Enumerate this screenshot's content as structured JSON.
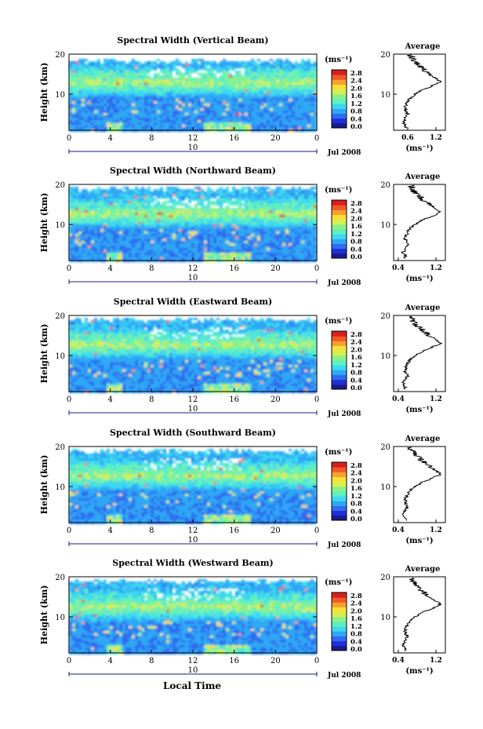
{
  "colorbar": {
    "unit_label": "(ms⁻¹)",
    "ticks": [
      "2.8",
      "2.4",
      "2.0",
      "1.6",
      "1.2",
      "0.8",
      "0.4",
      "0.0"
    ],
    "colors": [
      "#1a1a8c",
      "#1f2fd6",
      "#2f6cf0",
      "#2fa7f5",
      "#3ed8f0",
      "#5ef0c0",
      "#8cf08a",
      "#d4f050",
      "#f8e03a",
      "#f8a030",
      "#f05a28",
      "#d8201e"
    ]
  },
  "shared": {
    "ylabel": "Height (km)",
    "xticks": [
      "0",
      "4",
      "8",
      "12",
      "16",
      "20",
      "0"
    ],
    "date_label": "10",
    "month_label": "Jul 2008",
    "xlabel": "Local Time",
    "avg_title": "Average",
    "avg_xlabel": "(ms⁻¹)",
    "height_ticks": [
      "20",
      "10"
    ]
  },
  "panels": [
    {
      "id": "vertical",
      "title": "Spectral Width (Vertical Beam)",
      "avg_xticks": [
        "0.6",
        "1.2"
      ],
      "peak_height": 13.2
    },
    {
      "id": "northward",
      "title": "Spectral Width (Northward Beam)",
      "avg_xticks": [
        "0.4",
        "1.2"
      ],
      "peak_height": 13.0
    },
    {
      "id": "eastward",
      "title": "Spectral Width (Eastward Beam)",
      "avg_xticks": [
        "0.4",
        "1.2"
      ],
      "peak_height": 13.0
    },
    {
      "id": "southward",
      "title": "Spectral Width (Southward Beam)",
      "avg_xticks": [
        "0.4",
        "1.2"
      ],
      "peak_height": 13.0
    },
    {
      "id": "westward",
      "title": "Spectral Width (Westward Beam)",
      "avg_xticks": [
        "0.4",
        "1.2"
      ],
      "peak_height": 12.8
    }
  ],
  "chart_data": {
    "type": "heatmap",
    "x_range_hours": [
      0,
      24
    ],
    "y_range_km": [
      1,
      20
    ],
    "value_range_ms": [
      0.0,
      2.8
    ],
    "average_profile": {
      "type": "line",
      "x_range_ms": [
        0.3,
        1.4
      ],
      "heights_km": [
        2,
        3,
        4,
        5,
        6,
        7,
        8,
        9,
        10,
        11,
        12,
        13,
        14,
        15,
        16,
        17,
        18,
        19,
        20
      ],
      "values_ms": [
        0.55,
        0.5,
        0.55,
        0.6,
        0.55,
        0.55,
        0.6,
        0.65,
        0.75,
        0.9,
        1.1,
        1.3,
        1.2,
        1.05,
        0.95,
        0.85,
        0.75,
        0.7,
        0.65
      ]
    }
  }
}
